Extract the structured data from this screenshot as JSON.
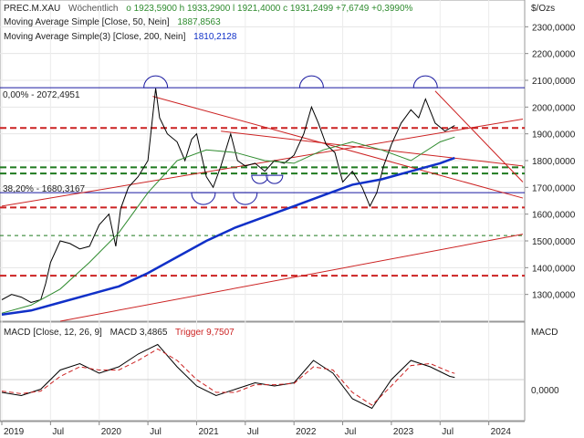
{
  "header": {
    "symbol": "PREC.M.XAU",
    "interval": "Wöchentlich",
    "ohlc_text": "o 1923,5900  h 1933,2900  l 1921,4000  c 1931,2499  +7,6749  +0,3990%",
    "sma50_label": "Moving Average Simple [Close, 50, Nein]",
    "sma50_value": "1887,8563",
    "sma200_label": "Moving Average Simple(3) [Close, 200, Nein]",
    "sma200_value": "1810,2128",
    "unit": "$/Ozs"
  },
  "fib_labels": {
    "top": "0,00% - 2072,4951",
    "mid": "38,20% - 1680,3167"
  },
  "macd_header": {
    "label": "MACD [Close, 12, 26, 9]",
    "macd_value": "MACD 3,4865",
    "trigger_value": "Trigger 9,7507",
    "panel_unit": "MACD",
    "zero_label": "0,0000"
  },
  "colors": {
    "price": "#000000",
    "sma50": "#2e8b2e",
    "sma200": "#1030c8",
    "fib": "#1a1aa0",
    "red_line": "#cc2222",
    "green_dash": "#1f7a1f",
    "macd": "#000000",
    "trigger": "#cc2222"
  },
  "chart_data": [
    {
      "type": "line",
      "title": "",
      "ylim": [
        1200,
        2400
      ],
      "y_ticks": [
        "2300,0000",
        "2200,0000",
        "2100,0000",
        "2000,0000",
        "1900,0000",
        "1800,0000",
        "1700,0000",
        "1600,0000",
        "1500,0000",
        "1400,0000",
        "1300,0000"
      ],
      "x_ticks": [
        "2019",
        "Jul",
        "2020",
        "Jul",
        "2021",
        "Jul",
        "2022",
        "Jul",
        "2023",
        "Jul",
        "2024"
      ],
      "series": [
        {
          "name": "PREC.M.XAU",
          "x": [
            2019.0,
            2019.1,
            2019.2,
            2019.3,
            2019.4,
            2019.45,
            2019.5,
            2019.6,
            2019.7,
            2019.8,
            2019.9,
            2020.0,
            2020.1,
            2020.17,
            2020.22,
            2020.3,
            2020.4,
            2020.5,
            2020.58,
            2020.62,
            2020.7,
            2020.8,
            2020.88,
            2020.95,
            2021.0,
            2021.1,
            2021.17,
            2021.25,
            2021.35,
            2021.42,
            2021.5,
            2021.6,
            2021.7,
            2021.8,
            2021.9,
            2022.0,
            2022.1,
            2022.18,
            2022.25,
            2022.33,
            2022.42,
            2022.5,
            2022.6,
            2022.7,
            2022.78,
            2022.85,
            2022.92,
            2023.0,
            2023.1,
            2023.2,
            2023.28,
            2023.35,
            2023.45,
            2023.55,
            2023.65
          ],
          "y": [
            1280,
            1300,
            1290,
            1270,
            1280,
            1340,
            1420,
            1500,
            1490,
            1470,
            1480,
            1560,
            1600,
            1480,
            1620,
            1700,
            1740,
            1800,
            2070,
            1960,
            1900,
            1870,
            1800,
            1880,
            1900,
            1740,
            1700,
            1780,
            1900,
            1800,
            1780,
            1790,
            1760,
            1800,
            1790,
            1820,
            1900,
            2000,
            1940,
            1860,
            1830,
            1720,
            1760,
            1700,
            1630,
            1680,
            1780,
            1860,
            1940,
            1990,
            1960,
            2030,
            1940,
            1910,
            1931
          ]
        },
        {
          "name": "Moving Average Simple [Close, 50, Nein]",
          "x": [
            2019.0,
            2019.3,
            2019.6,
            2019.9,
            2020.2,
            2020.5,
            2020.8,
            2021.1,
            2021.4,
            2021.7,
            2022.0,
            2022.3,
            2022.6,
            2022.9,
            2023.2,
            2023.5,
            2023.65
          ],
          "y": [
            1230,
            1260,
            1320,
            1420,
            1530,
            1680,
            1800,
            1840,
            1830,
            1800,
            1790,
            1840,
            1870,
            1840,
            1800,
            1870,
            1888
          ]
        },
        {
          "name": "Moving Average Simple(3) [Close, 200, Nein]",
          "x": [
            2019.0,
            2019.3,
            2019.6,
            2019.9,
            2020.2,
            2020.5,
            2020.8,
            2021.1,
            2021.4,
            2021.7,
            2022.0,
            2022.3,
            2022.6,
            2022.9,
            2023.2,
            2023.5,
            2023.65
          ],
          "y": [
            1225,
            1240,
            1270,
            1300,
            1330,
            1380,
            1440,
            1500,
            1550,
            1590,
            1630,
            1670,
            1710,
            1730,
            1760,
            1790,
            1810
          ]
        }
      ]
    },
    {
      "type": "line",
      "title": "",
      "ylim": [
        -60,
        60
      ],
      "x": [
        2019.0,
        2019.2,
        2019.4,
        2019.6,
        2019.8,
        2020.0,
        2020.2,
        2020.4,
        2020.6,
        2020.8,
        2021.0,
        2021.2,
        2021.4,
        2021.6,
        2021.8,
        2022.0,
        2022.2,
        2022.4,
        2022.6,
        2022.8,
        2023.0,
        2023.2,
        2023.4,
        2023.6,
        2023.65
      ],
      "series": [
        {
          "name": "MACD",
          "values": [
            -20,
            -25,
            -15,
            15,
            25,
            10,
            20,
            40,
            55,
            20,
            -10,
            -25,
            -15,
            -5,
            -10,
            -5,
            30,
            10,
            -30,
            -45,
            0,
            30,
            20,
            5,
            3.49
          ]
        },
        {
          "name": "Trigger",
          "values": [
            -18,
            -22,
            -18,
            5,
            20,
            15,
            15,
            30,
            48,
            30,
            0,
            -20,
            -20,
            -8,
            -8,
            -6,
            20,
            15,
            -20,
            -40,
            -10,
            22,
            25,
            12,
            9.75
          ]
        }
      ]
    }
  ]
}
